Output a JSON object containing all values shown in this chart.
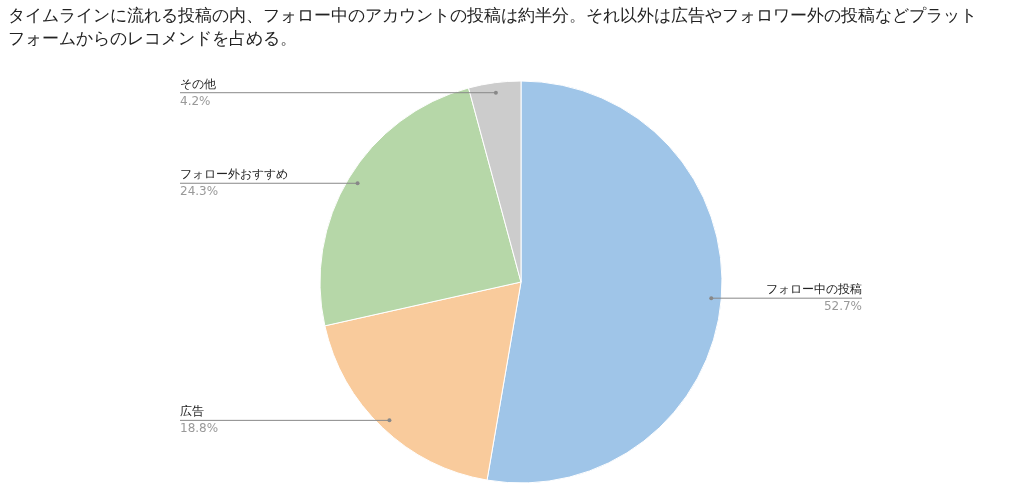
{
  "chart_data": {
    "type": "pie",
    "title": "タイムラインに流れる投稿の内、フォロー中のアカウントの投稿は約半分。それ以外は広告やフォロワー外の投稿などプラットフォームからのレコメンドを占める。",
    "categories": [
      "フォロー中の投稿",
      "広告",
      "フォロー外おすすめ",
      "その他"
    ],
    "values": [
      52.7,
      18.8,
      24.3,
      4.2
    ],
    "colors": [
      "#9fc5e8",
      "#f9cb9c",
      "#b6d7a8",
      "#cccccc"
    ],
    "value_labels": [
      "52.7%",
      "18.8%",
      "24.3%",
      "4.2%"
    ],
    "legend": false
  }
}
